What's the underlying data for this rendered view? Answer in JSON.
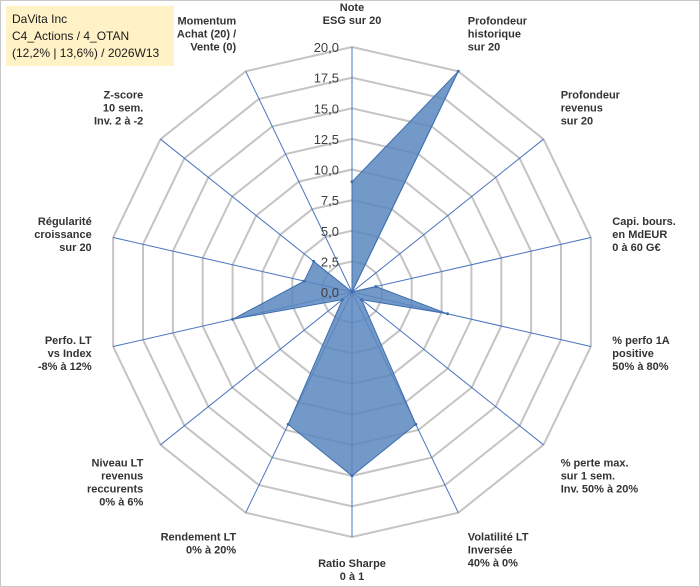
{
  "header": {
    "line1": "DaVita Inc",
    "line2": "C4_Actions / 4_OTAN",
    "line3": "(12,2% | 13,6%) / 2026W13"
  },
  "chart_data": {
    "type": "radar",
    "rmin": 0,
    "rmax": 20,
    "tick_step": 2.5,
    "tick_labels": [
      "0,0",
      "2,5",
      "5,0",
      "7,5",
      "10,0",
      "12,5",
      "15,0",
      "17,5",
      "20,0"
    ],
    "axes": [
      {
        "label": [
          "Note",
          "ESG sur 20"
        ]
      },
      {
        "label": [
          "Profondeur",
          "historique",
          "sur 20"
        ]
      },
      {
        "label": [
          "Profondeur",
          "revenus",
          "sur 20"
        ]
      },
      {
        "label": [
          "Capi. bours.",
          "en MdEUR",
          "0 à 60 G€"
        ]
      },
      {
        "label": [
          "% perfo 1A",
          "positive",
          "50% à 80%"
        ]
      },
      {
        "label": [
          "% perte max.",
          "sur 1 sem.",
          "Inv. 50% à 20%"
        ]
      },
      {
        "label": [
          "Volatilité LT",
          "Inversée",
          "40% à 0%"
        ]
      },
      {
        "label": [
          "Ratio Sharpe",
          "0 à 1"
        ]
      },
      {
        "label": [
          "Rendement LT",
          "0% à 20%"
        ]
      },
      {
        "label": [
          "Niveau LT",
          "revenus",
          "reccurents",
          "0% à 6%"
        ]
      },
      {
        "label": [
          "Perfo. LT",
          "vs Index",
          "-8% à 12%"
        ]
      },
      {
        "label": [
          "Régularité",
          "croissance",
          "sur 20"
        ]
      },
      {
        "label": [
          "Z-score",
          "10 sem.",
          "Inv. 2 à -2"
        ]
      },
      {
        "label": [
          "Momentum",
          "Achat (20) /",
          "Vente (0)"
        ]
      }
    ],
    "values": [
      9,
      20,
      0,
      2,
      8,
      1,
      12,
      15,
      12,
      1,
      10,
      4,
      4,
      0
    ],
    "colors": {
      "fill": "#5b87bf",
      "stroke": "#3f6fae",
      "grid": "#c4c4c4",
      "spokes": "#4a74c0"
    },
    "grid": true
  }
}
